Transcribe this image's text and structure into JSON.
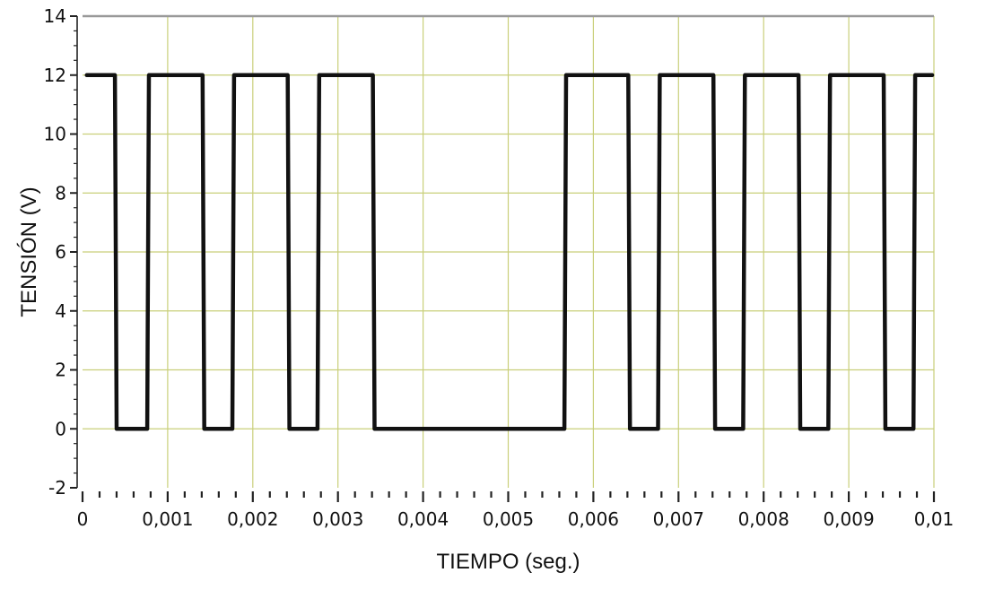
{
  "chart_data": {
    "type": "line",
    "xlabel": "TIEMPO (seg.)",
    "ylabel": "TENSIÓN (V)",
    "xlim": [
      0,
      0.01
    ],
    "ylim": [
      -2,
      14
    ],
    "x_ticks": [
      0,
      0.001,
      0.002,
      0.003,
      0.004,
      0.005,
      0.006,
      0.007,
      0.008,
      0.009,
      0.01
    ],
    "x_tick_labels": [
      "0",
      "0,001",
      "0,002",
      "0,003",
      "0,004",
      "0,005",
      "0,006",
      "0,007",
      "0,008",
      "0,009",
      "0,01"
    ],
    "y_ticks": [
      -2,
      0,
      2,
      4,
      6,
      8,
      10,
      12,
      14
    ],
    "y_tick_labels": [
      "-2",
      "0",
      "2",
      "4",
      "6",
      "8",
      "10",
      "12",
      "14"
    ],
    "grid": true,
    "colors": {
      "grid": "#c9cf7a",
      "line": "#111111",
      "frame": "#999999"
    },
    "series": [
      {
        "x": [
          5e-05,
          0.00038,
          0.0004,
          0.00076,
          0.00078,
          0.00141,
          0.00143,
          0.00176,
          0.00178,
          0.00241,
          0.00243,
          0.00276,
          0.00278,
          0.00341,
          0.00343,
          0.00566,
          0.00568,
          0.00641,
          0.00643,
          0.00676,
          0.00678,
          0.00741,
          0.00743,
          0.00776,
          0.00778,
          0.00841,
          0.00843,
          0.00876,
          0.00878,
          0.00941,
          0.00943,
          0.00976,
          0.00978,
          0.00998
        ],
        "y": [
          12,
          12,
          0,
          0,
          12,
          12,
          0,
          0,
          12,
          12,
          0,
          0,
          12,
          12,
          0,
          0,
          12,
          12,
          0,
          0,
          12,
          12,
          0,
          0,
          12,
          12,
          0,
          0,
          12,
          12,
          0,
          0,
          12,
          12
        ]
      }
    ]
  }
}
